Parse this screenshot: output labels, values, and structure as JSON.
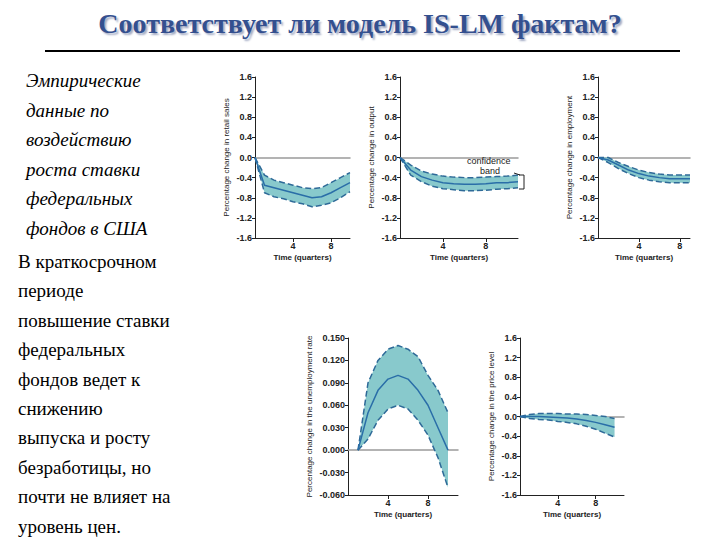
{
  "title": "Соответствует ли модель IS-LM фактам?",
  "text": {
    "intro": [
      "Эмпирические",
      "данные по",
      "воздействию",
      "роста ставки",
      "федеральных",
      "фондов в США"
    ],
    "conclusion": [
      "В краткосрочном",
      "периоде",
      "повышение ставки",
      "федеральных",
      "фондов ведет к",
      "снижению",
      "выпуска и росту",
      "безработицы, но",
      "почти не влияет на",
      "уровень цен."
    ]
  },
  "chart_data": [
    {
      "type": "line",
      "ylabel": "Percentage change in retail sales",
      "xlabel": "Time (quarters)",
      "x": [
        0,
        1,
        2,
        3,
        4,
        5,
        6,
        7,
        8,
        9,
        10
      ],
      "values": [
        0,
        -0.55,
        -0.6,
        -0.65,
        -0.7,
        -0.75,
        -0.8,
        -0.78,
        -0.7,
        -0.6,
        -0.5
      ],
      "upper": [
        0,
        -0.35,
        -0.45,
        -0.5,
        -0.55,
        -0.6,
        -0.62,
        -0.6,
        -0.5,
        -0.4,
        -0.3
      ],
      "lower": [
        0,
        -0.7,
        -0.78,
        -0.82,
        -0.88,
        -0.92,
        -0.98,
        -0.95,
        -0.9,
        -0.8,
        -0.68
      ],
      "color": "#2a6ea8",
      "xlim": [
        0,
        10
      ],
      "xticks": [
        4,
        8
      ],
      "ylim": [
        -1.6,
        1.6
      ],
      "yticks": [
        -1.6,
        -1.2,
        -0.8,
        -0.4,
        {
          "value": 0,
          "label": "0.0"
        },
        0.4,
        0.8,
        1.2,
        1.6
      ],
      "grid": false
    },
    {
      "type": "line",
      "ylabel": "Percentage change in output",
      "xlabel": "Time (quarters)",
      "x": [
        0,
        1,
        2,
        3,
        4,
        5,
        6,
        7,
        8,
        9,
        10,
        11
      ],
      "values": [
        0,
        -0.25,
        -0.38,
        -0.45,
        -0.5,
        -0.52,
        -0.53,
        -0.53,
        -0.52,
        -0.5,
        -0.5,
        -0.48
      ],
      "upper": [
        0,
        -0.15,
        -0.27,
        -0.33,
        -0.37,
        -0.39,
        -0.4,
        -0.4,
        -0.39,
        -0.38,
        -0.37,
        -0.35
      ],
      "lower": [
        0,
        -0.35,
        -0.48,
        -0.57,
        -0.62,
        -0.64,
        -0.66,
        -0.66,
        -0.65,
        -0.63,
        -0.62,
        -0.6
      ],
      "color": "#2a6ea8",
      "xlim": [
        0,
        11
      ],
      "xticks": [
        4,
        8
      ],
      "ylim": [
        -1.6,
        1.6
      ],
      "yticks": [
        -1.6,
        -1.2,
        -0.8,
        -0.4,
        {
          "value": 0,
          "label": "0.0"
        },
        0.4,
        0.8,
        1.2,
        1.6
      ],
      "grid": false,
      "annotations": [
        "confidence band"
      ]
    },
    {
      "type": "line",
      "ylabel": "Percentage change in employment",
      "xlabel": "Time (quarters)",
      "x": [
        0,
        1,
        2,
        3,
        4,
        5,
        6,
        7,
        8,
        9
      ],
      "values": [
        0,
        -0.05,
        -0.15,
        -0.25,
        -0.32,
        -0.37,
        -0.4,
        -0.42,
        -0.42,
        -0.42
      ],
      "upper": [
        0,
        0,
        -0.1,
        -0.18,
        -0.25,
        -0.3,
        -0.33,
        -0.35,
        -0.35,
        -0.35
      ],
      "lower": [
        0,
        -0.1,
        -0.22,
        -0.32,
        -0.4,
        -0.45,
        -0.48,
        -0.5,
        -0.5,
        -0.5
      ],
      "color": "#2a6ea8",
      "xlim": [
        0,
        9
      ],
      "xticks": [
        4,
        8
      ],
      "ylim": [
        -1.6,
        1.6
      ],
      "yticks": [
        -1.6,
        -1.2,
        -0.8,
        -0.4,
        {
          "value": 0,
          "label": "0.0"
        },
        0.4,
        0.8,
        1.2,
        1.6
      ],
      "grid": false
    },
    {
      "type": "line",
      "ylabel": "Percentage change in the unemployment rate",
      "xlabel": "Time (quarters)",
      "x": [
        1,
        2,
        3,
        4,
        5,
        6,
        7,
        8,
        9,
        10
      ],
      "values": [
        0,
        0.05,
        0.08,
        0.095,
        0.1,
        0.095,
        0.08,
        0.06,
        0.03,
        0
      ],
      "upper": [
        0,
        0.09,
        0.12,
        0.135,
        0.14,
        0.135,
        0.125,
        0.1,
        0.08,
        0.05
      ],
      "lower": [
        0,
        0.015,
        0.04,
        0.055,
        0.06,
        0.055,
        0.04,
        0.02,
        -0.01,
        -0.05
      ],
      "color": "#2a6ea8",
      "xlim": [
        0,
        11
      ],
      "xticks": [
        4,
        8
      ],
      "ylim": [
        -0.06,
        0.15
      ],
      "yticks": [
        {
          "value": -0.06,
          "label": "-0.060"
        },
        {
          "value": -0.03,
          "label": "-0.030"
        },
        {
          "value": 0,
          "label": "0.000"
        },
        {
          "value": 0.03,
          "label": "0.030"
        },
        {
          "value": 0.06,
          "label": "0.060"
        },
        {
          "value": 0.09,
          "label": "0.090"
        },
        {
          "value": 0.12,
          "label": "0.120"
        },
        {
          "value": 0.15,
          "label": "0.150"
        }
      ],
      "grid": false
    },
    {
      "type": "line",
      "ylabel": "Percentage change in the price level",
      "xlabel": "Time (quarters)",
      "x": [
        0,
        1,
        2,
        3,
        4,
        5,
        6,
        7,
        8,
        9,
        10
      ],
      "values": [
        0,
        0,
        0,
        -0.01,
        -0.02,
        -0.03,
        -0.05,
        -0.08,
        -0.12,
        -0.17,
        -0.22
      ],
      "upper": [
        0,
        0.04,
        0.06,
        0.06,
        0.06,
        0.05,
        0.05,
        0.04,
        0.02,
        0,
        -0.04
      ],
      "lower": [
        0,
        -0.04,
        -0.06,
        -0.07,
        -0.1,
        -0.12,
        -0.15,
        -0.2,
        -0.26,
        -0.34,
        -0.42
      ],
      "color": "#2a6ea8",
      "xlim": [
        0,
        11
      ],
      "xticks": [
        4,
        8
      ],
      "ylim": [
        -1.6,
        1.6
      ],
      "yticks": [
        -1.6,
        -1.2,
        -0.8,
        -0.4,
        {
          "value": 0,
          "label": "0.0"
        },
        0.4,
        0.8,
        1.2,
        1.6
      ],
      "grid": false
    }
  ]
}
